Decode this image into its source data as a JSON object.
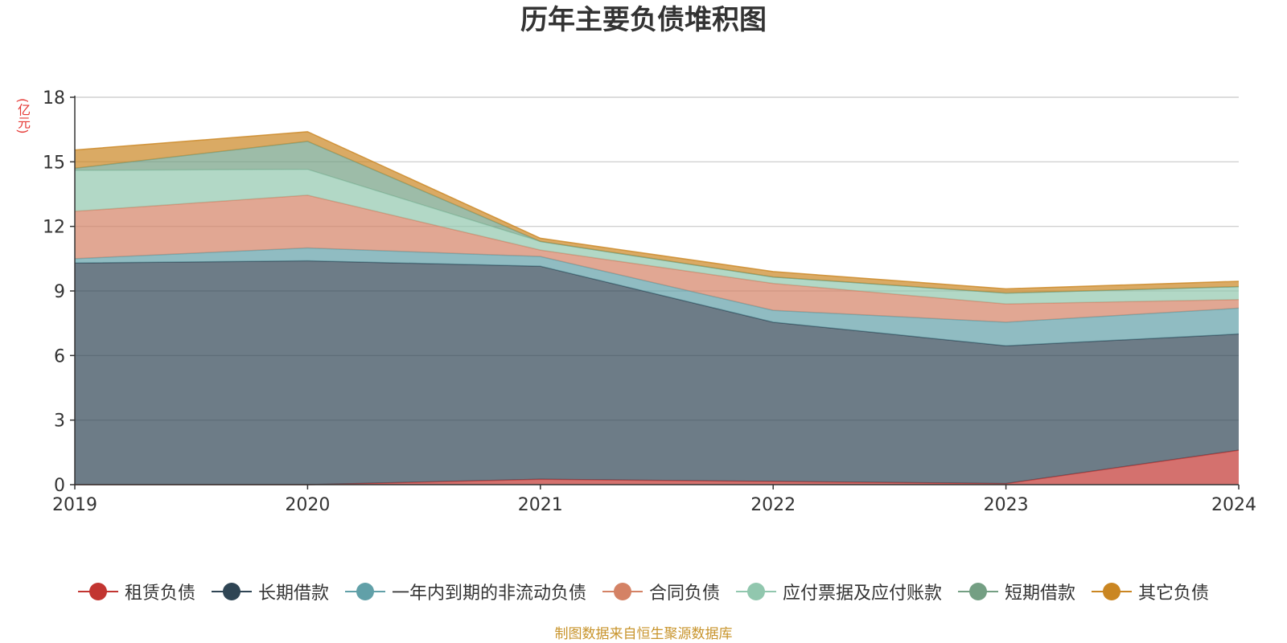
{
  "chart_data": {
    "type": "area",
    "title": "历年主要负债堆积图",
    "ylabel": "(亿元)",
    "xlabel": "",
    "x": [
      "2019",
      "2020",
      "2021",
      "2022",
      "2023",
      "2024"
    ],
    "ylim": [
      0,
      18
    ],
    "yticks": [
      0,
      3,
      6,
      9,
      12,
      15,
      18
    ],
    "stacked": true,
    "grid": true,
    "legend_position": "bottom",
    "series": [
      {
        "name": "租赁负债",
        "color": "#c23531",
        "values": [
          0.0,
          0.0,
          0.25,
          0.15,
          0.05,
          1.6
        ]
      },
      {
        "name": "长期借款",
        "color": "#2f4554",
        "values": [
          10.3,
          10.4,
          9.9,
          7.4,
          6.4,
          5.4
        ]
      },
      {
        "name": "一年内到期的非流动负债",
        "color": "#61a0a8",
        "values": [
          0.2,
          0.6,
          0.45,
          0.55,
          1.1,
          1.2
        ]
      },
      {
        "name": "合同负债",
        "color": "#d48265",
        "values": [
          2.2,
          2.45,
          0.3,
          1.25,
          0.85,
          0.4
        ]
      },
      {
        "name": "应付票据及应付账款",
        "color": "#91c7ae",
        "values": [
          1.9,
          1.2,
          0.4,
          0.3,
          0.5,
          0.6
        ]
      },
      {
        "name": "短期借款",
        "color": "#749f83",
        "values": [
          0.1,
          1.3,
          0.0,
          0.0,
          0.0,
          0.0
        ]
      },
      {
        "name": "其它负债",
        "color": "#ca8622",
        "values": [
          0.85,
          0.45,
          0.15,
          0.25,
          0.2,
          0.25
        ]
      }
    ],
    "source": "制图数据来自恒生聚源数据库"
  }
}
